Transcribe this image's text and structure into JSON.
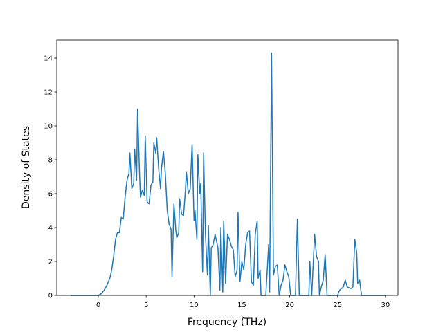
{
  "chart_data": {
    "type": "line",
    "xlabel": "Frequency (THz)",
    "ylabel": "Density of States",
    "xlim": [
      -4.34,
      31.31
    ],
    "ylim": [
      0,
      15.06
    ],
    "xticks": [
      0,
      5,
      10,
      15,
      20,
      25,
      30
    ],
    "yticks": [
      0,
      2,
      4,
      6,
      8,
      10,
      12,
      14
    ],
    "grid": false,
    "series": [
      {
        "color": "#1f77b4",
        "x": [
          -2.9,
          0,
          0.3,
          0.6,
          0.9,
          1.2,
          1.4,
          1.6,
          1.8,
          2.0,
          2.2,
          2.4,
          2.6,
          2.8,
          3.0,
          3.2,
          3.3,
          3.5,
          3.7,
          3.8,
          4.0,
          4.1,
          4.3,
          4.4,
          4.6,
          4.8,
          4.9,
          5.1,
          5.3,
          5.5,
          5.7,
          5.8,
          6.0,
          6.1,
          6.3,
          6.5,
          6.6,
          6.8,
          7.0,
          7.2,
          7.4,
          7.6,
          7.7,
          7.9,
          8.1,
          8.2,
          8.4,
          8.5,
          8.7,
          8.9,
          9.1,
          9.2,
          9.4,
          9.6,
          9.8,
          10.0,
          10.1,
          10.3,
          10.4,
          10.6,
          10.7,
          10.9,
          11.0,
          11.2,
          11.4,
          11.5,
          11.7,
          11.8,
          12.0,
          12.2,
          12.5,
          12.7,
          12.8,
          13.0,
          13.1,
          13.3,
          13.5,
          13.7,
          13.9,
          14.1,
          14.3,
          14.5,
          14.6,
          14.8,
          15.0,
          15.2,
          15.4,
          15.6,
          15.8,
          16.0,
          16.2,
          16.4,
          16.6,
          16.7,
          16.9,
          17.0,
          17.5,
          17.7,
          17.8,
          17.9,
          18.1,
          18.3,
          18.5,
          18.7,
          18.9,
          19.1,
          19.3,
          19.5,
          19.7,
          19.9,
          20.1,
          20.6,
          20.8,
          21.0,
          22.0,
          22.1,
          22.3,
          22.6,
          22.8,
          23.0,
          23.1,
          23.3,
          23.5,
          23.7,
          23.9,
          25.0,
          25.2,
          25.4,
          25.6,
          25.8,
          26.0,
          26.4,
          26.6,
          26.8,
          27.0,
          27.1,
          27.3,
          27.5,
          30
        ],
        "values": [
          0,
          0,
          0.1,
          0.3,
          0.6,
          1.0,
          1.5,
          2.3,
          3.3,
          3.7,
          3.7,
          4.6,
          4.5,
          5.8,
          6.8,
          7.2,
          8.4,
          6.3,
          6.6,
          8.6,
          6.8,
          11.0,
          7.3,
          5.8,
          6.2,
          5.9,
          9.4,
          5.5,
          5.4,
          6.5,
          6.7,
          9.0,
          8.4,
          9.3,
          7.5,
          6.3,
          7.5,
          8.5,
          7.2,
          5.0,
          4.2,
          3.9,
          1.1,
          5.4,
          3.8,
          3.4,
          3.7,
          5.7,
          4.8,
          4.7,
          6.2,
          7.3,
          6.0,
          6.3,
          8.9,
          4.4,
          5.0,
          3.3,
          8.3,
          6.0,
          6.6,
          1.4,
          8.4,
          3.5,
          1.2,
          4.1,
          0,
          2.8,
          3.0,
          3.6,
          2.8,
          0.3,
          4.0,
          0.2,
          4.4,
          0.7,
          3.6,
          3.3,
          2.9,
          2.7,
          1.1,
          1.5,
          4.9,
          0.8,
          2.0,
          1.5,
          3.0,
          3.7,
          3.8,
          0.8,
          0.6,
          3.6,
          4.4,
          1.0,
          1.5,
          0,
          0,
          2.0,
          3.0,
          0.2,
          14.3,
          1.2,
          1.7,
          1.8,
          0,
          0.6,
          0.9,
          1.8,
          1.4,
          1.1,
          0,
          0,
          4.5,
          0,
          0,
          2.0,
          0,
          3.6,
          2.3,
          2.0,
          0,
          0.5,
          0.9,
          2.4,
          0,
          0,
          0.3,
          0.4,
          0.5,
          0.9,
          0.5,
          0.4,
          0.5,
          3.3,
          2.5,
          0.7,
          0.9,
          0,
          0
        ]
      }
    ]
  }
}
